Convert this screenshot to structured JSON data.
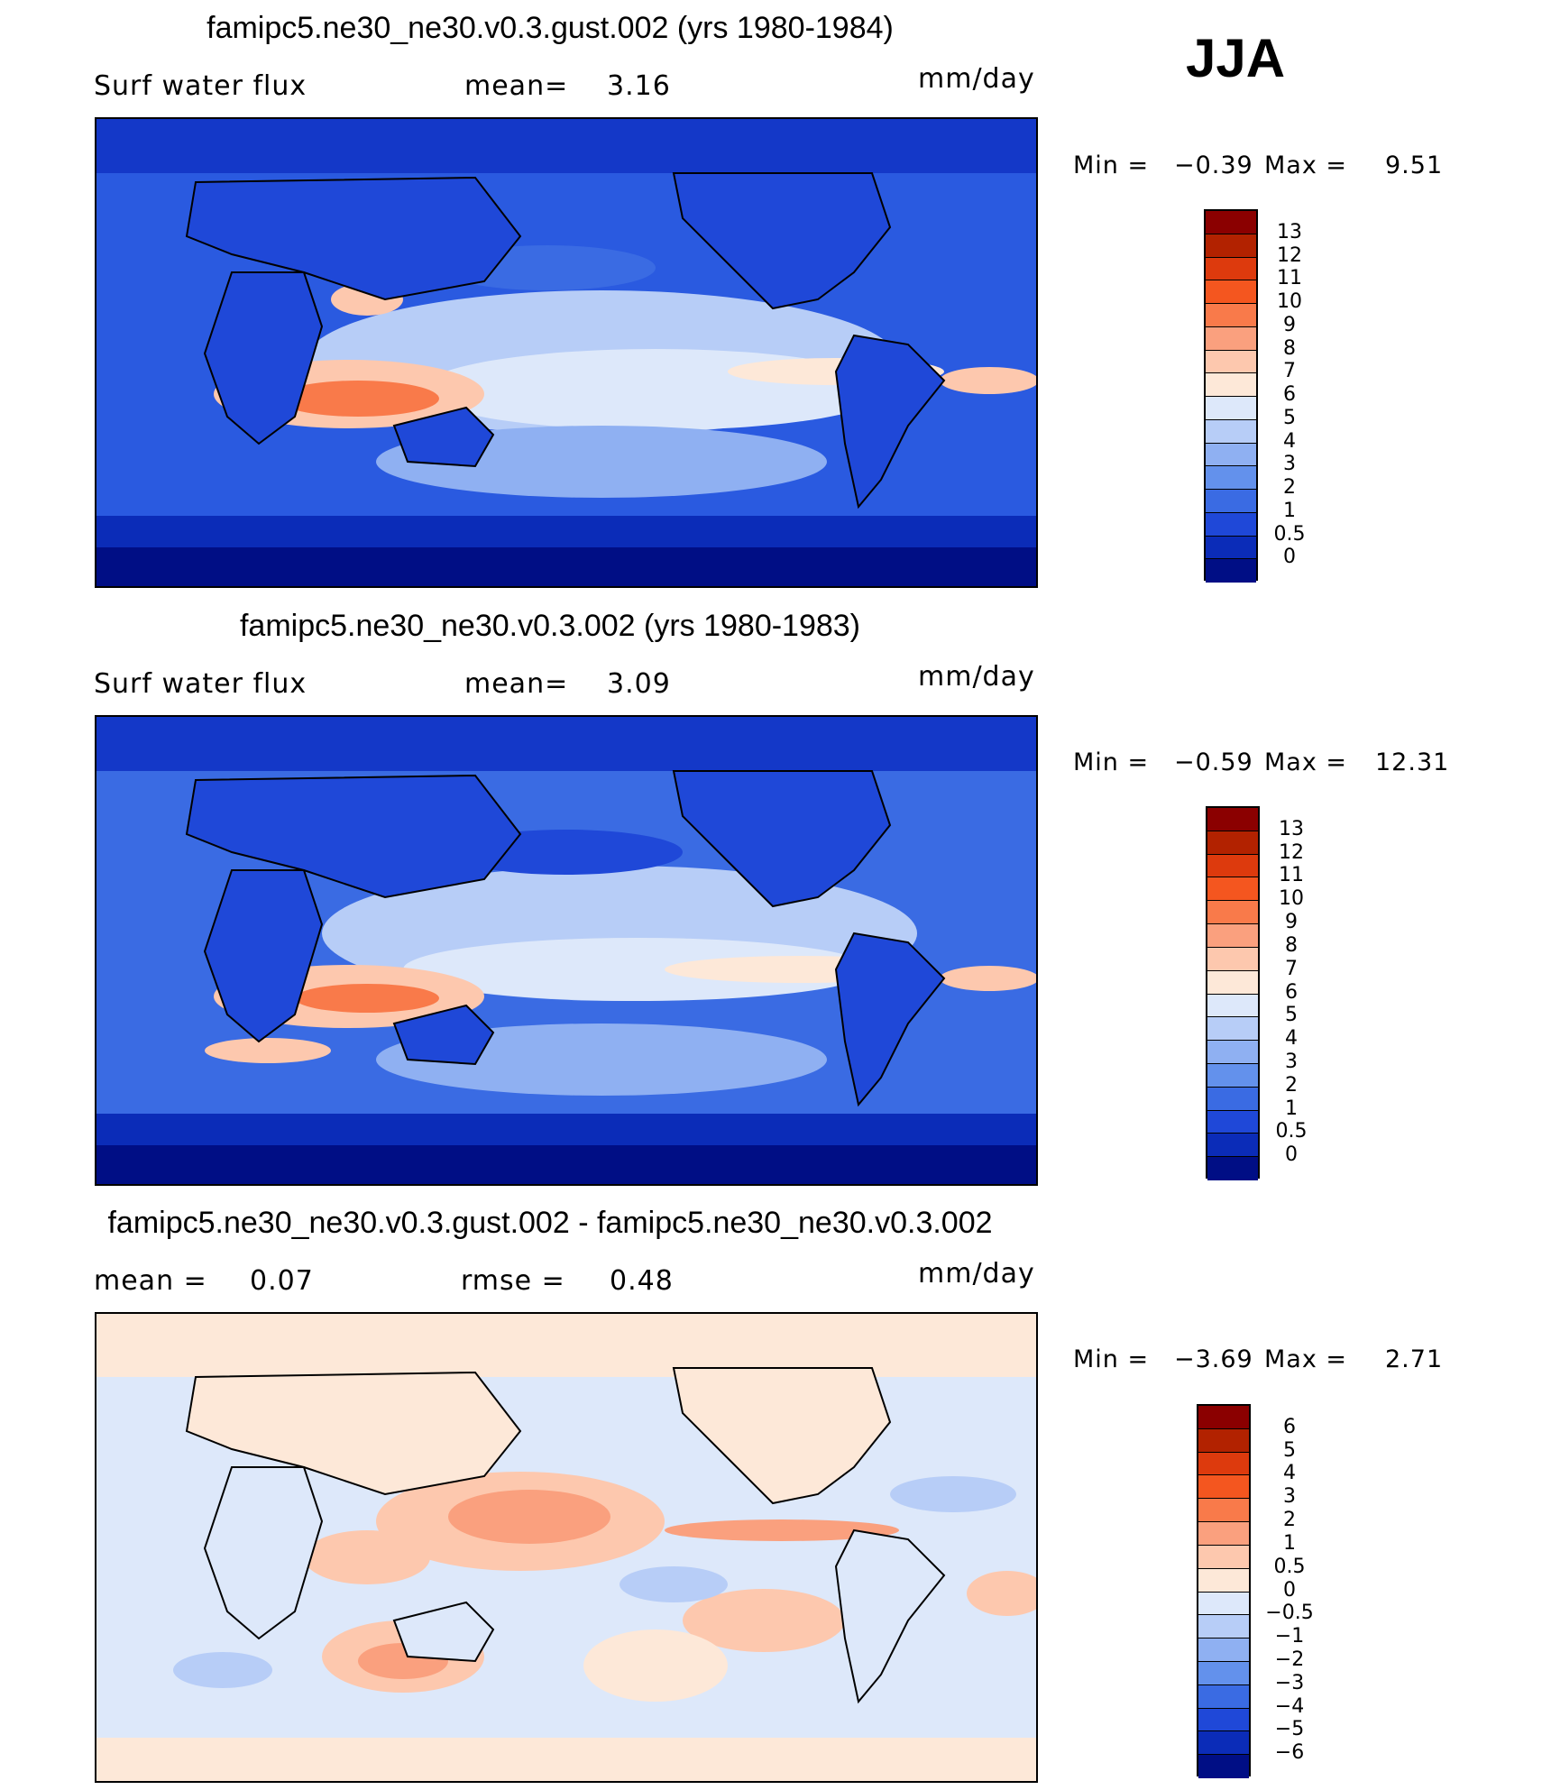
{
  "season": "JJA",
  "units": "mm/day",
  "panels": [
    {
      "title": "famipc5.ne30_ne30.v0.3.gust.002 (yrs 1980-1984)",
      "variable": "Surf water flux",
      "mean_label": "mean=",
      "mean_value": "3.16",
      "units": "mm/day",
      "min_label": "Min =",
      "min_value": "−0.39",
      "max_label": "Max =",
      "max_value": "9.51"
    },
    {
      "title": "famipc5.ne30_ne30.v0.3.002 (yrs 1980-1983)",
      "variable": "Surf water flux",
      "mean_label": "mean=",
      "mean_value": "3.09",
      "units": "mm/day",
      "min_label": "Min =",
      "min_value": "−0.59",
      "max_label": "Max =",
      "max_value": "12.31"
    },
    {
      "title": "famipc5.ne30_ne30.v0.3.gust.002 - famipc5.ne30_ne30.v0.3.002",
      "mean_label": "mean =",
      "mean_value": "0.07",
      "rmse_label": "rmse =",
      "rmse_value": "0.48",
      "units": "mm/day",
      "min_label": "Min =",
      "min_value": "−3.69",
      "max_label": "Max =",
      "max_value": "2.71"
    }
  ],
  "colorbar_abs": {
    "labels": [
      "13",
      "12",
      "11",
      "10",
      "9",
      "8",
      "7",
      "6",
      "5",
      "4",
      "3",
      "2",
      "1",
      "0.5",
      "0"
    ],
    "colors": [
      "#8b0000",
      "#b22200",
      "#dd3a0d",
      "#f4561f",
      "#f97a4a",
      "#faa07e",
      "#fdc8ae",
      "#fde8d8",
      "#dde8fa",
      "#b7cdf7",
      "#8fb0f2",
      "#6391ec",
      "#3a6be3",
      "#1f48d8",
      "#0b2cb8",
      "#000e85"
    ]
  },
  "colorbar_diff": {
    "labels": [
      "6",
      "5",
      "4",
      "3",
      "2",
      "1",
      "0.5",
      "0",
      "−0.5",
      "−1",
      "−2",
      "−3",
      "−4",
      "−5",
      "−6"
    ],
    "colors": [
      "#8b0000",
      "#b22200",
      "#dd3a0d",
      "#f4561f",
      "#f97a4a",
      "#faa07e",
      "#fdc8ae",
      "#fde8d8",
      "#dde8fa",
      "#b7cdf7",
      "#8fb0f2",
      "#6391ec",
      "#3a6be3",
      "#1f48d8",
      "#0b2cb8",
      "#000e85"
    ]
  }
}
